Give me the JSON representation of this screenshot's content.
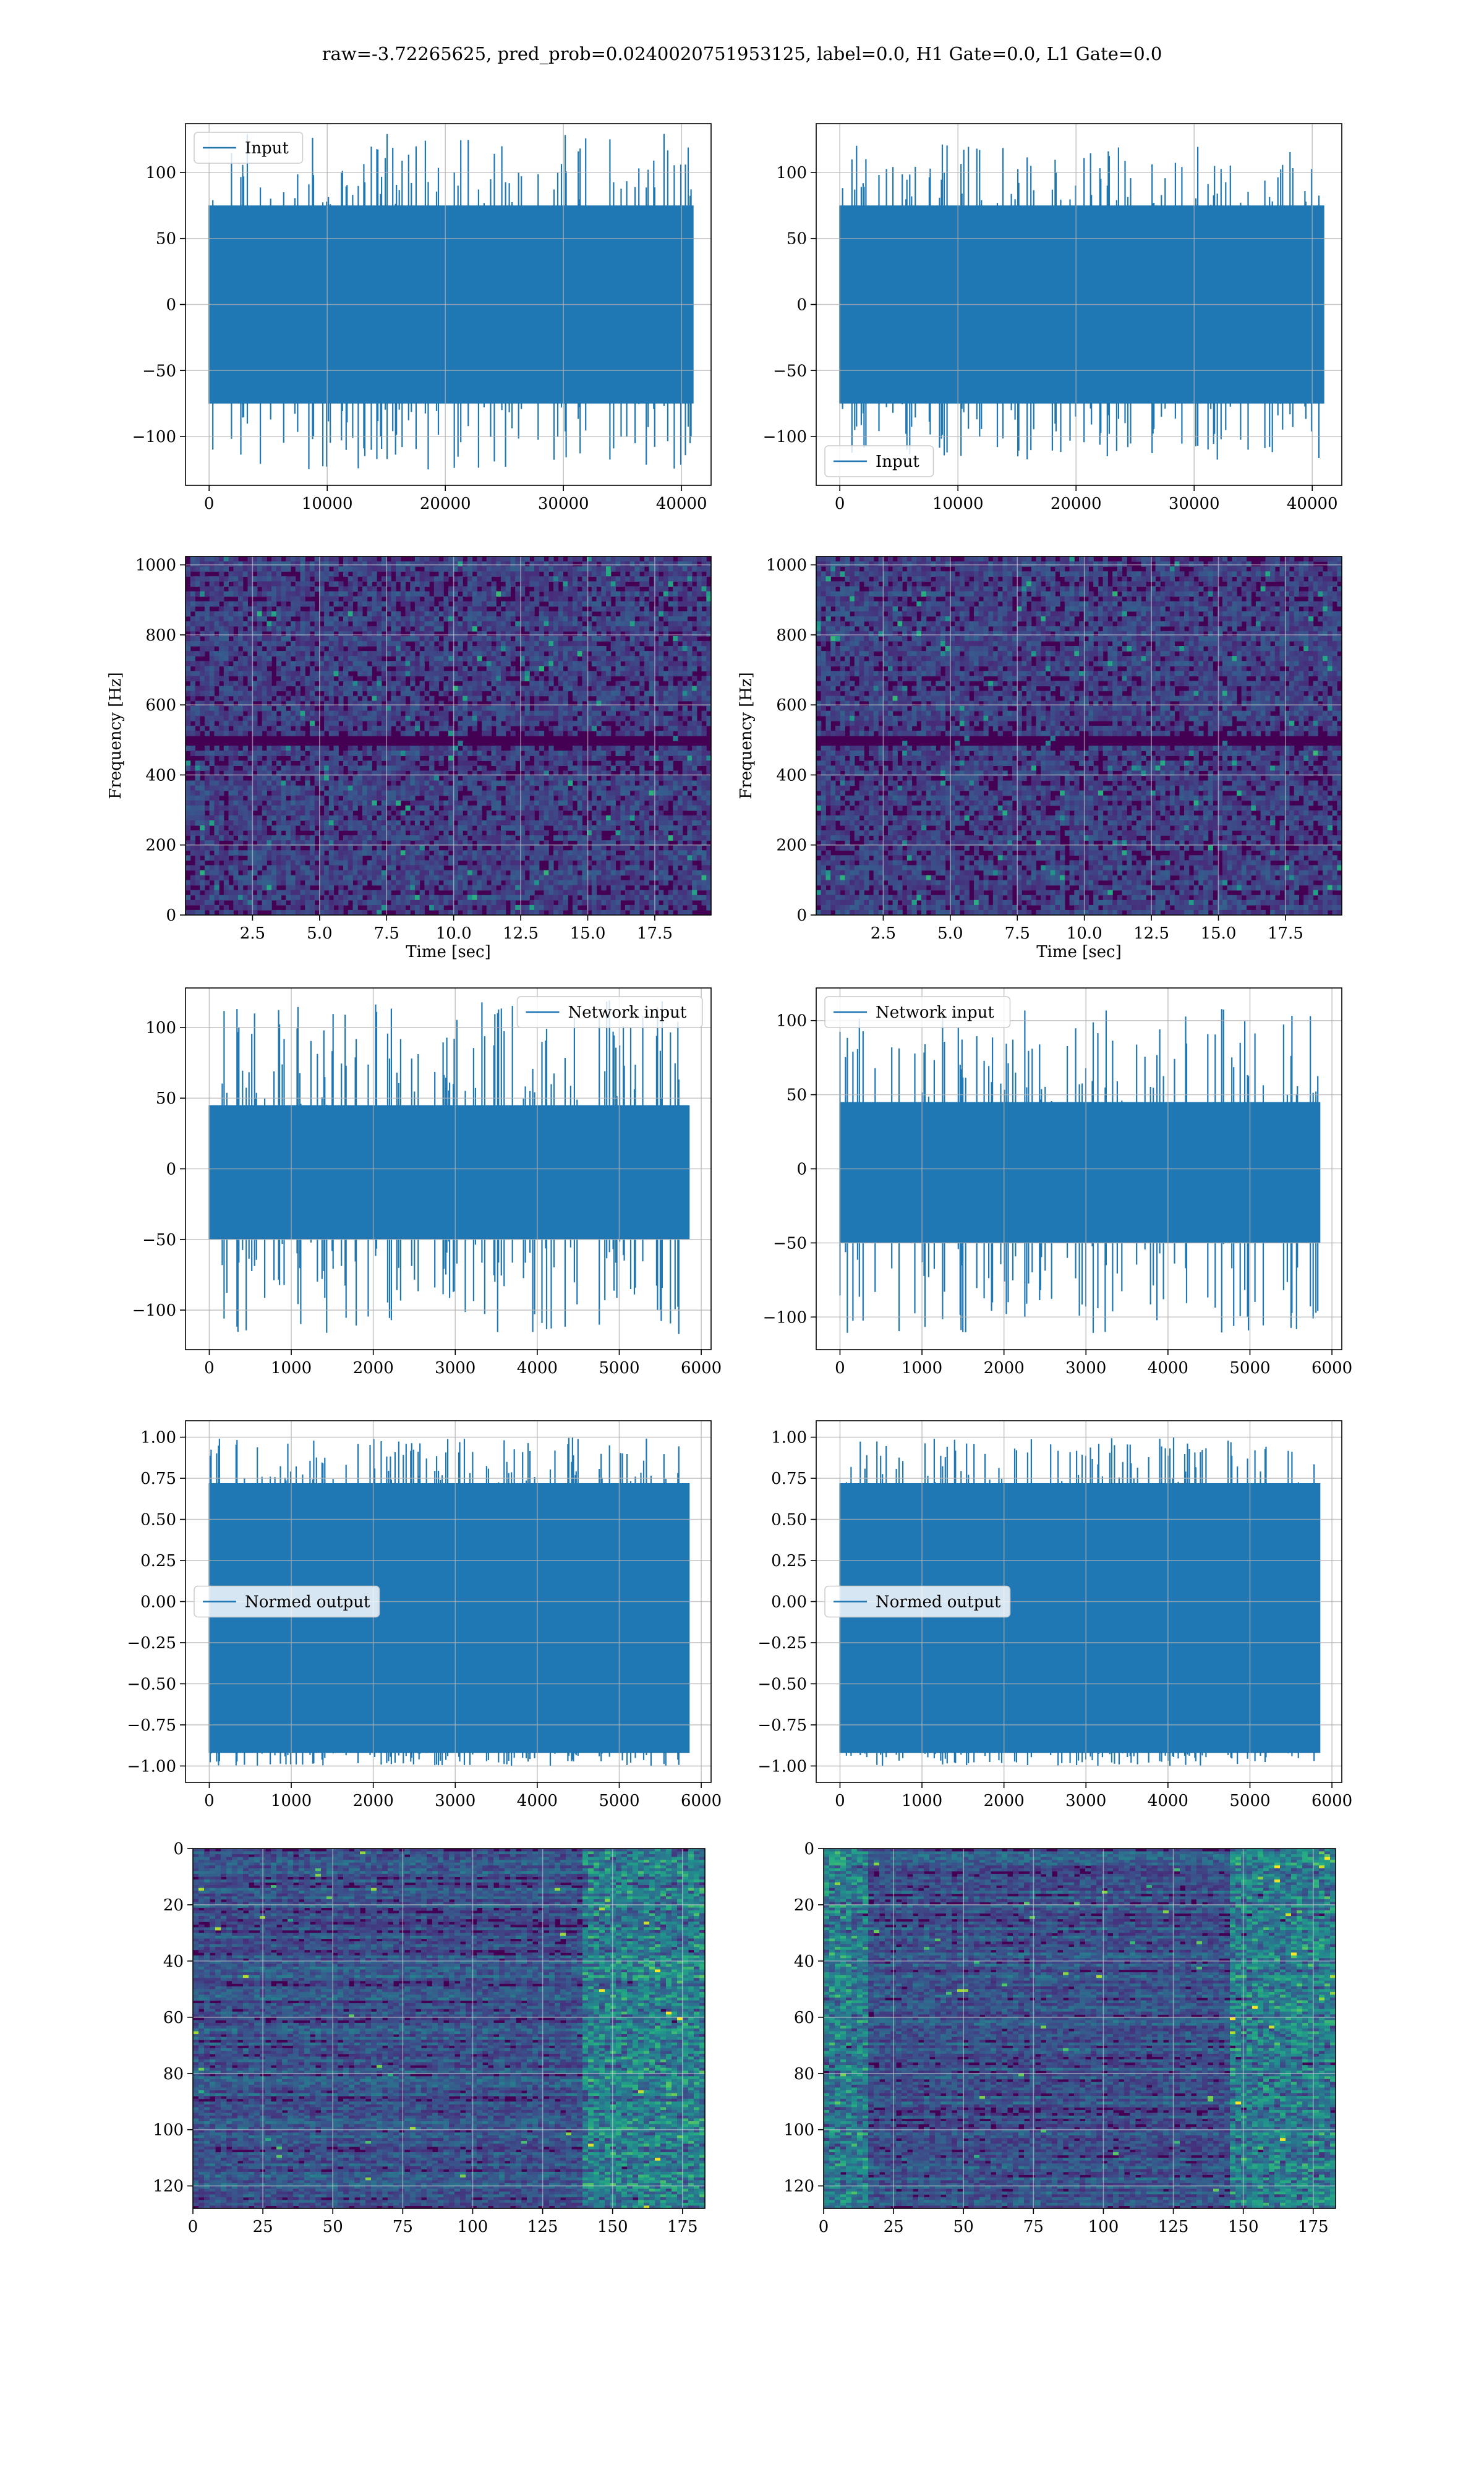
{
  "suptitle": "raw=-3.72265625, pred_prob=0.0240020751953125, label=0.0, H1 Gate=0.0, L1 Gate=0.0",
  "colors": {
    "line": "#1f77b4",
    "grid": "#b0b0b0",
    "viridis": [
      "#440154",
      "#472c7a",
      "#3b518b",
      "#2c718e",
      "#21908d",
      "#27ad81",
      "#5cc863",
      "#aadc32",
      "#fde725"
    ]
  },
  "chart_data": [
    {
      "id": "row1-left",
      "type": "line",
      "description": "Input strain series, left detector",
      "legend": {
        "entries": [
          "Input"
        ],
        "placement": "top-left"
      },
      "xlim": [
        -2000,
        42500
      ],
      "ylim": [
        -137,
        137
      ],
      "xticks": [
        0,
        10000,
        20000,
        30000,
        40000
      ],
      "yticks": [
        -100,
        -50,
        0,
        50,
        100
      ],
      "series": [
        {
          "name": "Input",
          "x_range": [
            0,
            40960
          ],
          "envelope_max": 130,
          "envelope_min": -125,
          "core_band": [
            -75,
            75
          ]
        }
      ],
      "xlabel": "",
      "ylabel": "",
      "grid": true
    },
    {
      "id": "row1-right",
      "type": "line",
      "description": "Input strain series, right detector",
      "legend": {
        "entries": [
          "Input"
        ],
        "placement": "bottom-left"
      },
      "xlim": [
        -2000,
        42500
      ],
      "ylim": [
        -137,
        137
      ],
      "xticks": [
        0,
        10000,
        20000,
        30000,
        40000
      ],
      "yticks": [
        -100,
        -50,
        0,
        50,
        100
      ],
      "series": [
        {
          "name": "Input",
          "x_range": [
            0,
            40960
          ],
          "envelope_max": 122,
          "envelope_min": -118,
          "core_band": [
            -75,
            75
          ]
        }
      ],
      "xlabel": "",
      "ylabel": "",
      "grid": true
    },
    {
      "id": "row2-left",
      "type": "heatmap",
      "description": "Spectrogram, left detector",
      "xlim": [
        0,
        19.6
      ],
      "ylim": [
        0,
        1024
      ],
      "xticks": [
        2.5,
        5.0,
        7.5,
        10.0,
        12.5,
        15.0,
        17.5
      ],
      "yticks": [
        0,
        200,
        400,
        600,
        800,
        1000
      ],
      "xlabel": "Time [sec]",
      "ylabel": "Frequency [Hz]",
      "colormap": "viridis",
      "grid": true,
      "dark_band_hz": 500
    },
    {
      "id": "row2-right",
      "type": "heatmap",
      "description": "Spectrogram, right detector",
      "xlim": [
        0,
        19.6
      ],
      "ylim": [
        0,
        1024
      ],
      "xticks": [
        2.5,
        5.0,
        7.5,
        10.0,
        12.5,
        15.0,
        17.5
      ],
      "yticks": [
        0,
        200,
        400,
        600,
        800,
        1000
      ],
      "xlabel": "Time [sec]",
      "ylabel": "Frequency [Hz]",
      "colormap": "viridis",
      "grid": true,
      "dark_band_hz": 500
    },
    {
      "id": "row3-left",
      "type": "line",
      "description": "Network input, left detector",
      "legend": {
        "entries": [
          "Network input"
        ],
        "placement": "top-right"
      },
      "xlim": [
        -290,
        6120
      ],
      "ylim": [
        -128,
        128
      ],
      "xticks": [
        0,
        1000,
        2000,
        3000,
        4000,
        5000,
        6000
      ],
      "yticks": [
        -100,
        -50,
        0,
        50,
        100
      ],
      "series": [
        {
          "name": "Network input",
          "x_range": [
            0,
            5850
          ],
          "envelope_max": 120,
          "envelope_min": -117,
          "core_band": [
            -50,
            45
          ]
        }
      ],
      "xlabel": "",
      "ylabel": "",
      "grid": true
    },
    {
      "id": "row3-right",
      "type": "line",
      "description": "Network input, right detector",
      "legend": {
        "entries": [
          "Network input"
        ],
        "placement": "top-left"
      },
      "xlim": [
        -290,
        6120
      ],
      "ylim": [
        -122,
        122
      ],
      "xticks": [
        0,
        1000,
        2000,
        3000,
        4000,
        5000,
        6000
      ],
      "yticks": [
        -100,
        -50,
        0,
        50,
        100
      ],
      "series": [
        {
          "name": "Network input",
          "x_range": [
            0,
            5850
          ],
          "envelope_max": 108,
          "envelope_min": -111,
          "core_band": [
            -50,
            45
          ]
        }
      ],
      "xlabel": "",
      "ylabel": "",
      "grid": true
    },
    {
      "id": "row4-left",
      "type": "line",
      "description": "Normed output, left detector",
      "legend": {
        "entries": [
          "Normed output"
        ],
        "placement": "center-left"
      },
      "xlim": [
        -290,
        6120
      ],
      "ylim": [
        -1.1,
        1.1
      ],
      "xticks": [
        0,
        1000,
        2000,
        3000,
        4000,
        5000,
        6000
      ],
      "yticks": [
        -1.0,
        -0.75,
        -0.5,
        -0.25,
        0.0,
        0.25,
        0.5,
        0.75,
        1.0
      ],
      "series": [
        {
          "name": "Normed output",
          "x_range": [
            0,
            5850
          ],
          "envelope_max": 1.0,
          "envelope_min": -1.0,
          "core_band": [
            -0.92,
            0.72
          ]
        }
      ],
      "xlabel": "",
      "ylabel": "",
      "grid": true
    },
    {
      "id": "row4-right",
      "type": "line",
      "description": "Normed output, right detector",
      "legend": {
        "entries": [
          "Normed output"
        ],
        "placement": "center-left"
      },
      "xlim": [
        -290,
        6120
      ],
      "ylim": [
        -1.1,
        1.1
      ],
      "xticks": [
        0,
        1000,
        2000,
        3000,
        4000,
        5000,
        6000
      ],
      "yticks": [
        -1.0,
        -0.75,
        -0.5,
        -0.25,
        0.0,
        0.25,
        0.5,
        0.75,
        1.0
      ],
      "series": [
        {
          "name": "Normed output",
          "x_range": [
            0,
            5850
          ],
          "envelope_max": 1.0,
          "envelope_min": -1.0,
          "core_band": [
            -0.92,
            0.72
          ]
        }
      ],
      "xlabel": "",
      "ylabel": "",
      "grid": true
    },
    {
      "id": "row5-left",
      "type": "heatmap",
      "description": "Feature map 128 x 183, left detector",
      "xlim": [
        0,
        183
      ],
      "ylim": [
        128,
        0
      ],
      "y_inverted": true,
      "xticks": [
        0,
        25,
        50,
        75,
        100,
        125,
        150,
        175
      ],
      "yticks": [
        0,
        20,
        40,
        60,
        80,
        100,
        120
      ],
      "xlabel": "",
      "ylabel": "",
      "colormap": "viridis",
      "grid": true,
      "bright_region_x": [
        140,
        183
      ]
    },
    {
      "id": "row5-right",
      "type": "heatmap",
      "description": "Feature map 128 x 183, right detector",
      "xlim": [
        0,
        183
      ],
      "ylim": [
        128,
        0
      ],
      "y_inverted": true,
      "xticks": [
        0,
        25,
        50,
        75,
        100,
        125,
        150,
        175
      ],
      "yticks": [
        0,
        20,
        40,
        60,
        80,
        100,
        120
      ],
      "xlabel": "",
      "ylabel": "",
      "colormap": "viridis",
      "grid": true,
      "bright_region_x": [
        0,
        15
      ],
      "bright_region_x2": [
        145,
        183
      ]
    }
  ]
}
